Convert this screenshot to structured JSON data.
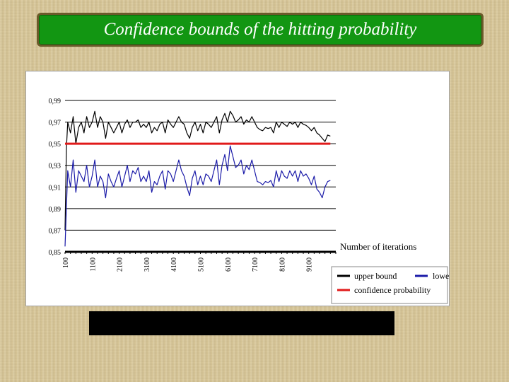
{
  "title": "Confidence bounds of the hitting probability",
  "chart_data": {
    "type": "line",
    "title": "",
    "xlabel": "Number of iterations",
    "ylabel": "",
    "ylim": [
      0.85,
      0.99
    ],
    "xlim": [
      100,
      10100
    ],
    "x_tick_labels": [
      "100",
      "1100",
      "2100",
      "3100",
      "4100",
      "5100",
      "6100",
      "7100",
      "8100",
      "9100"
    ],
    "x_tick_values": [
      100,
      1100,
      2100,
      3100,
      4100,
      5100,
      6100,
      7100,
      8100,
      9100
    ],
    "y_tick_labels": [
      "0,99",
      "0,97",
      "0,95",
      "0,93",
      "0,91",
      "0,89",
      "0,87",
      "0,85"
    ],
    "y_tick_values": [
      0.99,
      0.97,
      0.95,
      0.93,
      0.91,
      0.89,
      0.87,
      0.85
    ],
    "grid": true,
    "legend_position": "bottom-right",
    "series": [
      {
        "name": "upper bound",
        "color": "#000000",
        "points": [
          [
            100,
            0.87
          ],
          [
            150,
            0.945
          ],
          [
            200,
            0.97
          ],
          [
            300,
            0.96
          ],
          [
            400,
            0.975
          ],
          [
            500,
            0.95
          ],
          [
            600,
            0.965
          ],
          [
            700,
            0.97
          ],
          [
            800,
            0.96
          ],
          [
            900,
            0.975
          ],
          [
            1000,
            0.965
          ],
          [
            1100,
            0.97
          ],
          [
            1200,
            0.98
          ],
          [
            1300,
            0.965
          ],
          [
            1400,
            0.975
          ],
          [
            1500,
            0.97
          ],
          [
            1600,
            0.955
          ],
          [
            1700,
            0.97
          ],
          [
            1800,
            0.965
          ],
          [
            1900,
            0.96
          ],
          [
            2000,
            0.965
          ],
          [
            2100,
            0.97
          ],
          [
            2200,
            0.96
          ],
          [
            2300,
            0.968
          ],
          [
            2400,
            0.972
          ],
          [
            2500,
            0.965
          ],
          [
            2600,
            0.97
          ],
          [
            2700,
            0.97
          ],
          [
            2800,
            0.972
          ],
          [
            2900,
            0.965
          ],
          [
            3000,
            0.968
          ],
          [
            3100,
            0.965
          ],
          [
            3200,
            0.97
          ],
          [
            3300,
            0.96
          ],
          [
            3400,
            0.965
          ],
          [
            3500,
            0.962
          ],
          [
            3600,
            0.968
          ],
          [
            3700,
            0.97
          ],
          [
            3800,
            0.96
          ],
          [
            3900,
            0.972
          ],
          [
            4000,
            0.968
          ],
          [
            4100,
            0.965
          ],
          [
            4200,
            0.97
          ],
          [
            4300,
            0.975
          ],
          [
            4400,
            0.97
          ],
          [
            4500,
            0.968
          ],
          [
            4600,
            0.96
          ],
          [
            4700,
            0.955
          ],
          [
            4800,
            0.965
          ],
          [
            4900,
            0.97
          ],
          [
            5000,
            0.962
          ],
          [
            5100,
            0.968
          ],
          [
            5200,
            0.96
          ],
          [
            5300,
            0.97
          ],
          [
            5400,
            0.968
          ],
          [
            5500,
            0.965
          ],
          [
            5600,
            0.97
          ],
          [
            5700,
            0.975
          ],
          [
            5800,
            0.96
          ],
          [
            5900,
            0.972
          ],
          [
            6000,
            0.978
          ],
          [
            6100,
            0.97
          ],
          [
            6200,
            0.98
          ],
          [
            6300,
            0.976
          ],
          [
            6400,
            0.97
          ],
          [
            6500,
            0.972
          ],
          [
            6600,
            0.975
          ],
          [
            6700,
            0.968
          ],
          [
            6800,
            0.972
          ],
          [
            6900,
            0.97
          ],
          [
            7000,
            0.975
          ],
          [
            7100,
            0.97
          ],
          [
            7200,
            0.965
          ],
          [
            7300,
            0.963
          ],
          [
            7400,
            0.962
          ],
          [
            7500,
            0.965
          ],
          [
            7600,
            0.964
          ],
          [
            7700,
            0.965
          ],
          [
            7800,
            0.96
          ],
          [
            7900,
            0.97
          ],
          [
            8000,
            0.965
          ],
          [
            8100,
            0.97
          ],
          [
            8200,
            0.968
          ],
          [
            8300,
            0.966
          ],
          [
            8400,
            0.97
          ],
          [
            8500,
            0.968
          ],
          [
            8600,
            0.97
          ],
          [
            8700,
            0.965
          ],
          [
            8800,
            0.97
          ],
          [
            8900,
            0.968
          ],
          [
            9000,
            0.967
          ],
          [
            9100,
            0.965
          ],
          [
            9200,
            0.962
          ],
          [
            9300,
            0.965
          ],
          [
            9400,
            0.96
          ],
          [
            9500,
            0.958
          ],
          [
            9600,
            0.955
          ],
          [
            9700,
            0.952
          ],
          [
            9800,
            0.958
          ],
          [
            9900,
            0.957
          ]
        ]
      },
      {
        "name": "lower bound",
        "color": "#1a1aa8",
        "points": [
          [
            100,
            0.855
          ],
          [
            150,
            0.89
          ],
          [
            200,
            0.925
          ],
          [
            300,
            0.91
          ],
          [
            400,
            0.935
          ],
          [
            500,
            0.905
          ],
          [
            600,
            0.925
          ],
          [
            700,
            0.92
          ],
          [
            800,
            0.915
          ],
          [
            900,
            0.93
          ],
          [
            1000,
            0.91
          ],
          [
            1100,
            0.92
          ],
          [
            1200,
            0.935
          ],
          [
            1300,
            0.91
          ],
          [
            1400,
            0.92
          ],
          [
            1500,
            0.915
          ],
          [
            1600,
            0.9
          ],
          [
            1700,
            0.922
          ],
          [
            1800,
            0.915
          ],
          [
            1900,
            0.91
          ],
          [
            2000,
            0.918
          ],
          [
            2100,
            0.925
          ],
          [
            2200,
            0.91
          ],
          [
            2300,
            0.92
          ],
          [
            2400,
            0.93
          ],
          [
            2500,
            0.915
          ],
          [
            2600,
            0.925
          ],
          [
            2700,
            0.922
          ],
          [
            2800,
            0.928
          ],
          [
            2900,
            0.915
          ],
          [
            3000,
            0.92
          ],
          [
            3100,
            0.915
          ],
          [
            3200,
            0.925
          ],
          [
            3300,
            0.905
          ],
          [
            3400,
            0.915
          ],
          [
            3500,
            0.912
          ],
          [
            3600,
            0.92
          ],
          [
            3700,
            0.925
          ],
          [
            3800,
            0.908
          ],
          [
            3900,
            0.925
          ],
          [
            4000,
            0.922
          ],
          [
            4100,
            0.915
          ],
          [
            4200,
            0.925
          ],
          [
            4300,
            0.935
          ],
          [
            4400,
            0.925
          ],
          [
            4500,
            0.92
          ],
          [
            4600,
            0.91
          ],
          [
            4700,
            0.902
          ],
          [
            4800,
            0.918
          ],
          [
            4900,
            0.925
          ],
          [
            5000,
            0.912
          ],
          [
            5100,
            0.92
          ],
          [
            5200,
            0.912
          ],
          [
            5300,
            0.922
          ],
          [
            5400,
            0.92
          ],
          [
            5500,
            0.915
          ],
          [
            5600,
            0.925
          ],
          [
            5700,
            0.935
          ],
          [
            5800,
            0.912
          ],
          [
            5900,
            0.93
          ],
          [
            6000,
            0.94
          ],
          [
            6100,
            0.925
          ],
          [
            6200,
            0.948
          ],
          [
            6300,
            0.938
          ],
          [
            6400,
            0.928
          ],
          [
            6500,
            0.93
          ],
          [
            6600,
            0.935
          ],
          [
            6700,
            0.922
          ],
          [
            6800,
            0.93
          ],
          [
            6900,
            0.926
          ],
          [
            7000,
            0.935
          ],
          [
            7100,
            0.925
          ],
          [
            7200,
            0.915
          ],
          [
            7300,
            0.914
          ],
          [
            7400,
            0.912
          ],
          [
            7500,
            0.915
          ],
          [
            7600,
            0.914
          ],
          [
            7700,
            0.916
          ],
          [
            7800,
            0.91
          ],
          [
            7900,
            0.925
          ],
          [
            8000,
            0.915
          ],
          [
            8100,
            0.925
          ],
          [
            8200,
            0.92
          ],
          [
            8300,
            0.918
          ],
          [
            8400,
            0.925
          ],
          [
            8500,
            0.92
          ],
          [
            8600,
            0.925
          ],
          [
            8700,
            0.915
          ],
          [
            8800,
            0.925
          ],
          [
            8900,
            0.92
          ],
          [
            9000,
            0.922
          ],
          [
            9100,
            0.918
          ],
          [
            9200,
            0.912
          ],
          [
            9300,
            0.92
          ],
          [
            9400,
            0.908
          ],
          [
            9500,
            0.905
          ],
          [
            9600,
            0.9
          ],
          [
            9700,
            0.91
          ],
          [
            9800,
            0.915
          ],
          [
            9900,
            0.916
          ]
        ]
      },
      {
        "name": "confidence probability",
        "color": "#e11a1a",
        "points": [
          [
            100,
            0.95
          ],
          [
            9900,
            0.95
          ]
        ]
      }
    ]
  }
}
